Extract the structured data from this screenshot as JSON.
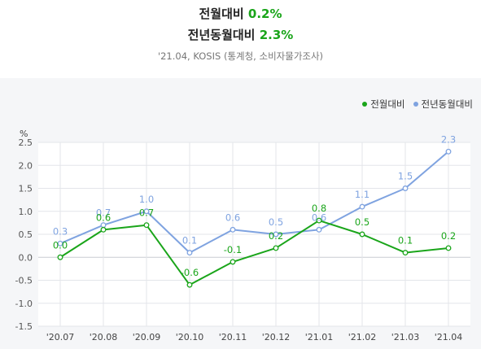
{
  "header": {
    "line1_label": "전월대비",
    "line1_value": "0.2%",
    "line2_label": "전년동월대비",
    "line2_value": "2.3%",
    "subtitle": "'21.04, KOSIS (통계청, 소비자물가조사)"
  },
  "colors": {
    "mom": "#1aa51a",
    "yoy": "#7fa3e0",
    "grid": "#e3e5ea",
    "zero_line": "#c9ccd2",
    "panel_bg": "#f5f6f8",
    "value_green": "#1aa51a"
  },
  "chart_data": {
    "type": "line",
    "categories": [
      "'20.07",
      "'20.08",
      "'20.09",
      "'20.10",
      "'20.11",
      "'20.12",
      "'21.01",
      "'21.02",
      "'21.03",
      "'21.04"
    ],
    "series": [
      {
        "name": "전월대비",
        "values": [
          0.0,
          0.6,
          0.7,
          -0.6,
          -0.1,
          0.2,
          0.8,
          0.5,
          0.1,
          0.2
        ],
        "labels": [
          "0.0",
          "0.6",
          "0.7",
          "-0.6",
          "-0.1",
          "0.2",
          "0.8",
          "0.5",
          "0.1",
          "0.2"
        ]
      },
      {
        "name": "전년동월대비",
        "values": [
          0.3,
          0.7,
          1.0,
          0.1,
          0.6,
          0.5,
          0.6,
          1.1,
          1.5,
          2.3
        ],
        "labels": [
          "0.3",
          "0.7",
          "1.0",
          "0.1",
          "0.6",
          "0.5",
          "0.6",
          "1.1",
          "1.5",
          "2.3"
        ]
      }
    ],
    "y_unit": "%",
    "yticks": [
      "2.5",
      "2.0",
      "1.5",
      "1.0",
      "0.5",
      "0.0",
      "-0.5",
      "-1.0",
      "-1.5"
    ],
    "ylim": [
      -1.5,
      2.5
    ],
    "grid": true,
    "legend_position": "top-right"
  }
}
